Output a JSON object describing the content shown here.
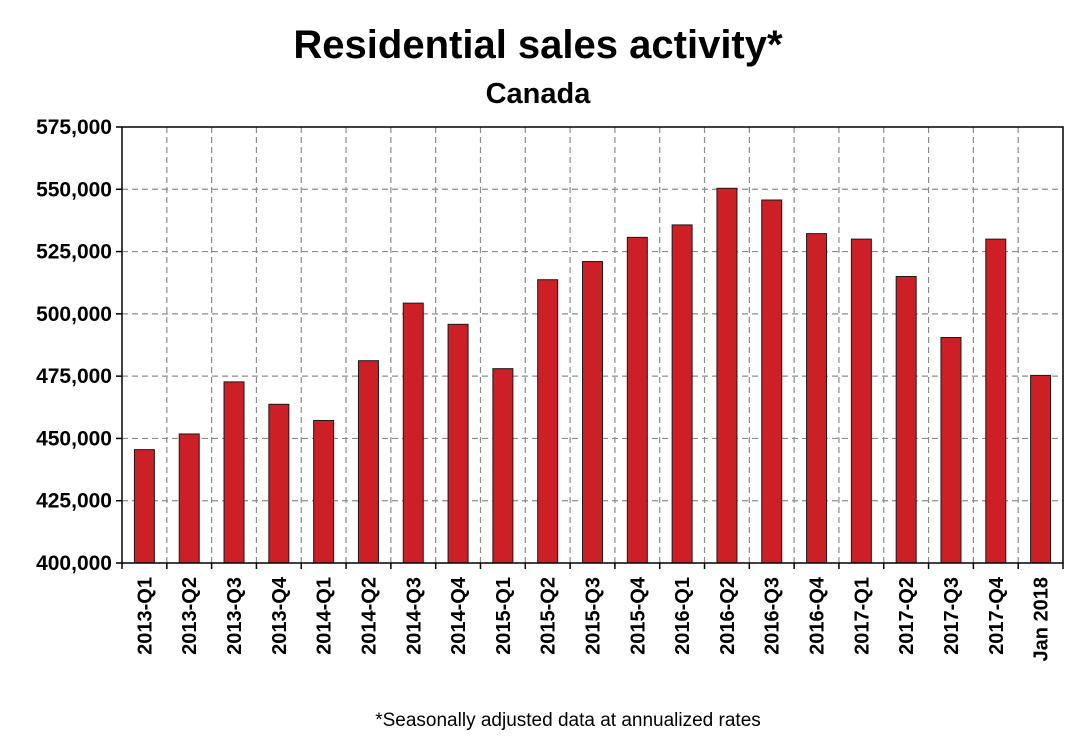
{
  "chart_data": {
    "type": "bar",
    "title": "Residential sales activity*",
    "subtitle": "Canada",
    "footnote": "*Seasonally adjusted data at annualized rates",
    "xlabel": "",
    "ylabel": "",
    "ylim": [
      400000,
      575000
    ],
    "yticks": [
      400000,
      425000,
      450000,
      475000,
      500000,
      525000,
      550000,
      575000
    ],
    "ytick_labels": [
      "400,000",
      "425,000",
      "450,000",
      "475,000",
      "500,000",
      "525,000",
      "550,000",
      "575,000"
    ],
    "grid": true,
    "categories": [
      "2013-Q1",
      "2013-Q2",
      "2013-Q3",
      "2013-Q4",
      "2014-Q1",
      "2014-Q2",
      "2014-Q3",
      "2014-Q4",
      "2015-Q1",
      "2015-Q2",
      "2015-Q3",
      "2015-Q4",
      "2016-Q1",
      "2016-Q2",
      "2016-Q3",
      "2016-Q4",
      "2017-Q1",
      "2017-Q2",
      "2017-Q3",
      "2017-Q4",
      "Jan 2018"
    ],
    "values": [
      445500,
      451800,
      472700,
      463700,
      457200,
      481200,
      504300,
      495800,
      478000,
      513700,
      521000,
      530700,
      535700,
      550400,
      545700,
      532200,
      530000,
      515000,
      490500,
      530000,
      475300
    ],
    "colors": {
      "bar": "#cc1f26",
      "bar_edge": "#1a1a1a",
      "grid": "#8c8c8c",
      "axis": "#000000"
    }
  }
}
